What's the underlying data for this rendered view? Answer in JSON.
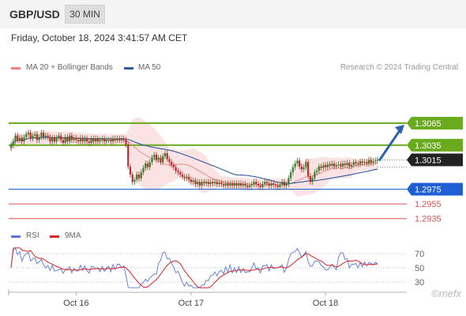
{
  "header": {
    "symbol": "GBP/USD",
    "timeframe": "30 MIN"
  },
  "datetime": "Friday, October 18, 2024 3:41:57 AM CET",
  "legend": {
    "ma20_label": "MA 20 + Bollinger Bands",
    "ma20_color": "#f08080",
    "ma50_label": "MA 50",
    "ma50_color": "#2c5aa0"
  },
  "credit": "Research © 2024 Trading Central",
  "rsi_legend": {
    "rsi_label": "RSI",
    "rsi_color": "#5577dd",
    "ma9_label": "9MA",
    "ma9_color": "#e02020"
  },
  "watermark": "©mefx",
  "chart_data": [
    {
      "type": "candlestick",
      "x_labels": [
        "Oct 16",
        "Oct 17",
        "Oct 18"
      ],
      "ylim": [
        1.2925,
        1.3095
      ],
      "price_tag": {
        "value": "1.3015",
        "color": "#222222"
      },
      "levels": [
        {
          "value": 1.3065,
          "label": "1.3065",
          "kind": "resistance",
          "color": "#6aaa1e"
        },
        {
          "value": 1.3035,
          "label": "1.3035",
          "kind": "resistance",
          "color": "#6aaa1e"
        },
        {
          "value": 1.2975,
          "label": "1.2975",
          "kind": "pivot",
          "color": "#1f5fd6"
        },
        {
          "value": 1.2955,
          "label": "1.2955",
          "kind": "support",
          "color": "#e05050"
        },
        {
          "value": 1.2935,
          "label": "1.2935",
          "kind": "support",
          "color": "#e05050"
        }
      ],
      "close_series": [
        1.3035,
        1.304,
        1.3048,
        1.3042,
        1.3045,
        1.304,
        1.3046,
        1.305,
        1.3052,
        1.3044,
        1.3048,
        1.305,
        1.3042,
        1.3046,
        1.3052,
        1.3046,
        1.3048,
        1.3046,
        1.304,
        1.3045,
        1.304,
        1.3045,
        1.3048,
        1.3042,
        1.3038,
        1.3046,
        1.304,
        1.3048,
        1.3042,
        1.3045,
        1.3042,
        1.304,
        1.3045,
        1.304,
        1.3044,
        1.304,
        1.3038,
        1.3044,
        1.304,
        1.3044,
        1.304,
        1.3042,
        1.3044,
        1.304,
        1.3042,
        1.3042,
        1.304,
        1.3044,
        1.3042,
        1.3044,
        1.3042,
        1.3044,
        1.3042,
        1.3036,
        1.3006,
        1.2995,
        1.2985,
        1.2988,
        1.2995,
        1.299,
        1.2998,
        1.3004,
        1.301,
        1.3005,
        1.3012,
        1.3018,
        1.3022,
        1.3015,
        1.3018,
        1.3012,
        1.302,
        1.3024,
        1.3016,
        1.3012,
        1.3008,
        1.3005,
        1.3,
        1.2998,
        1.2995,
        1.2992,
        1.299,
        1.2992,
        1.2988,
        1.2985,
        1.2987,
        1.2982,
        1.2985,
        1.298,
        1.2985,
        1.2983,
        1.2985,
        1.2982,
        1.2985,
        1.2983,
        1.2985,
        1.2982,
        1.2984,
        1.2982,
        1.298,
        1.2983,
        1.298,
        1.2983,
        1.298,
        1.2983,
        1.298,
        1.2983,
        1.298,
        1.2982,
        1.298,
        1.2978,
        1.298,
        1.2982,
        1.2985,
        1.2982,
        1.298,
        1.2978,
        1.2982,
        1.2985,
        1.2983,
        1.298,
        1.2983,
        1.2981,
        1.298,
        1.2978,
        1.2981,
        1.2985,
        1.298,
        1.2982,
        1.299,
        1.2998,
        1.3005,
        1.301,
        1.3014,
        1.3006,
        1.3002,
        1.3005,
        1.3012,
        1.2993,
        1.2985,
        1.299,
        1.2998,
        1.3,
        1.3006,
        1.3004,
        1.3008,
        1.3005,
        1.3009,
        1.3007,
        1.301,
        1.3006,
        1.3008,
        1.3009,
        1.3006,
        1.301,
        1.3008,
        1.3011,
        1.3006,
        1.3008,
        1.3012,
        1.301,
        1.3009,
        1.3013,
        1.3011,
        1.3012,
        1.301,
        1.3015,
        1.3011,
        1.3013,
        1.3014,
        1.3015
      ],
      "rsi": {
        "yticks": [
          70,
          50,
          30
        ],
        "ylim": [
          20,
          80
        ]
      }
    }
  ]
}
